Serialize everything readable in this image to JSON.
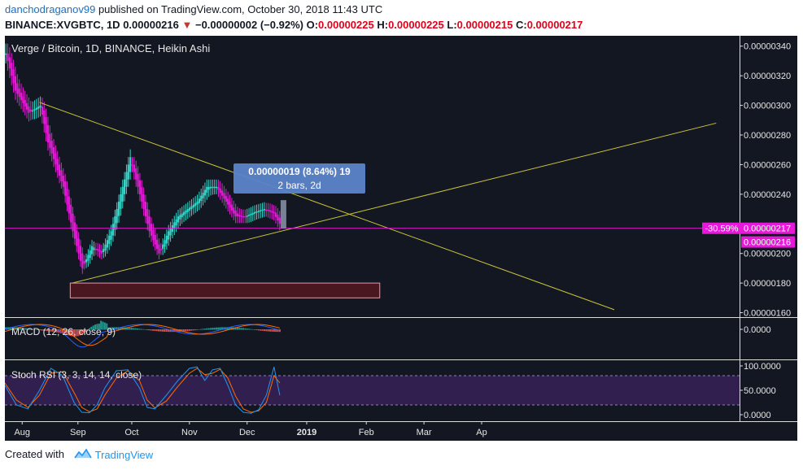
{
  "header": {
    "user": "danchodraganov99",
    "published": " published on TradingView.com, October 30, 2018 11:43 UTC",
    "symbol": "BINANCE:XVGBTC, 1D",
    "last": " 0.00000216 ",
    "change_arrow": "▼",
    "change": " −0.00000002 (−0.92%) ",
    "o_label": "O:",
    "o_value": "0.00000225",
    "h_label": " H:",
    "h_value": "0.00000225",
    "l_label": " L:",
    "l_value": "0.00000215",
    "c_label": " C:",
    "c_value": "0.00000217"
  },
  "pane_titles": {
    "main": "Verge / Bitcoin, 1D, BINANCE, Heikin Ashi",
    "macd": "MACD (12, 26, close, 9)",
    "stoch": "Stoch RSI (3, 3, 14, 14, close)"
  },
  "measure": {
    "line1": "0.00000019 (8.64%) 19",
    "line2": "2 bars, 2d"
  },
  "price_labels": {
    "percent": "-30.59%",
    "value1": "0.00000217",
    "value2": "0.00000216"
  },
  "colors": {
    "background": "#131722",
    "candle": "#e619d8",
    "candle_up": "#33d6c8",
    "trendline": "#c8c33c",
    "box": "#4a1620",
    "macd": "#2962ff",
    "signal": "#ff6d00",
    "stoch_k": "#2196f3",
    "stoch_d": "#ff6d00",
    "stoch_band": "#311f4f"
  },
  "footer": {
    "created_with": "Created with",
    "brand": "TradingView"
  },
  "chart_data": [
    {
      "type": "candlestick",
      "title": "Verge / Bitcoin, 1D, BINANCE, Heikin Ashi",
      "x_ticks": [
        "Aug",
        "Sep",
        "Oct",
        "Nov",
        "Dec",
        "2019",
        "Feb",
        "Mar",
        "Ap"
      ],
      "y_ticks": [
        "0.00000340",
        "0.00000320",
        "0.00000300",
        "0.00000280",
        "0.00000260",
        "0.00000240",
        "0.00000200",
        "0.00000180",
        "0.00000160"
      ],
      "ylim": [
        1.57e-06,
        3.47e-06
      ],
      "approx_close_path": [
        [
          0,
          3.35e-06
        ],
        [
          5,
          3.1e-06
        ],
        [
          12,
          2.95e-06
        ],
        [
          18,
          3e-06
        ],
        [
          22,
          2.75e-06
        ],
        [
          30,
          2.45e-06
        ],
        [
          35,
          2.15e-06
        ],
        [
          40,
          1.9e-06
        ],
        [
          45,
          2.05e-06
        ],
        [
          50,
          2e-06
        ],
        [
          55,
          2.15e-06
        ],
        [
          60,
          2.4e-06
        ],
        [
          65,
          2.65e-06
        ],
        [
          70,
          2.4e-06
        ],
        [
          75,
          2.15e-06
        ],
        [
          80,
          2e-06
        ],
        [
          85,
          2.15e-06
        ],
        [
          90,
          2.25e-06
        ],
        [
          95,
          2.3e-06
        ],
        [
          100,
          2.35e-06
        ],
        [
          105,
          2.45e-06
        ],
        [
          110,
          2.45e-06
        ],
        [
          115,
          2.35e-06
        ],
        [
          120,
          2.25e-06
        ],
        [
          125,
          2.25e-06
        ],
        [
          130,
          2.28e-06
        ],
        [
          135,
          2.3e-06
        ],
        [
          140,
          2.27e-06
        ],
        [
          143,
          2.2e-06
        ]
      ],
      "trendlines": [
        {
          "from": [
            18,
            3.02e-06
          ],
          "to": [
            317,
            1.62e-06
          ]
        },
        {
          "from": [
            35,
            1.8e-06
          ],
          "to": [
            370,
            2.88e-06
          ]
        }
      ],
      "zone": {
        "from_x": 34,
        "to_x": 195,
        "top": 1.8e-06,
        "bottom": 1.7e-06
      },
      "last_price": 2.16e-06,
      "close_price": 2.17e-06
    },
    {
      "type": "line",
      "title": "MACD (12, 26, close, 9)",
      "y_ticks": [
        "0.0000"
      ]
    },
    {
      "type": "line",
      "title": "Stoch RSI (3, 3, 14, 14, close)",
      "y_ticks": [
        "100.0000",
        "50.0000",
        "0.0000"
      ],
      "ylim": [
        0,
        100
      ],
      "bands": [
        20,
        80
      ],
      "k": [
        [
          0,
          60
        ],
        [
          6,
          20
        ],
        [
          12,
          12
        ],
        [
          18,
          50
        ],
        [
          24,
          95
        ],
        [
          30,
          80
        ],
        [
          36,
          25
        ],
        [
          40,
          5
        ],
        [
          44,
          4
        ],
        [
          48,
          20
        ],
        [
          52,
          55
        ],
        [
          58,
          90
        ],
        [
          64,
          92
        ],
        [
          70,
          55
        ],
        [
          74,
          15
        ],
        [
          78,
          12
        ],
        [
          84,
          40
        ],
        [
          90,
          70
        ],
        [
          96,
          95
        ],
        [
          100,
          98
        ],
        [
          104,
          70
        ],
        [
          108,
          92
        ],
        [
          112,
          95
        ],
        [
          116,
          60
        ],
        [
          120,
          20
        ],
        [
          124,
          5
        ],
        [
          128,
          3
        ],
        [
          132,
          10
        ],
        [
          136,
          40
        ],
        [
          140,
          98
        ],
        [
          143,
          40
        ]
      ],
      "d": [
        [
          0,
          65
        ],
        [
          6,
          30
        ],
        [
          12,
          15
        ],
        [
          18,
          40
        ],
        [
          24,
          85
        ],
        [
          30,
          88
        ],
        [
          36,
          45
        ],
        [
          40,
          15
        ],
        [
          44,
          6
        ],
        [
          48,
          12
        ],
        [
          52,
          40
        ],
        [
          58,
          75
        ],
        [
          64,
          90
        ],
        [
          70,
          70
        ],
        [
          74,
          30
        ],
        [
          78,
          14
        ],
        [
          84,
          28
        ],
        [
          90,
          58
        ],
        [
          96,
          85
        ],
        [
          100,
          95
        ],
        [
          104,
          82
        ],
        [
          108,
          85
        ],
        [
          112,
          93
        ],
        [
          116,
          75
        ],
        [
          120,
          38
        ],
        [
          124,
          12
        ],
        [
          128,
          5
        ],
        [
          132,
          8
        ],
        [
          136,
          25
        ],
        [
          140,
          80
        ],
        [
          143,
          65
        ]
      ]
    }
  ]
}
